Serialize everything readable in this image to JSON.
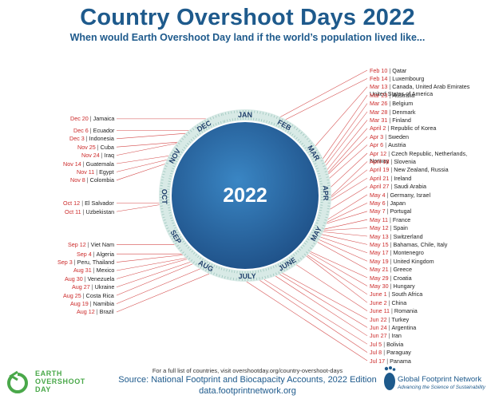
{
  "title": "Country Overshoot Days 2022",
  "subtitle": "When would Earth Overshoot Day land if the world’s population lived like...",
  "year": "2022",
  "colors": {
    "title": "#1e5a8c",
    "date": "#cc2a2a",
    "ring": "#d8eae6",
    "ring_tick": "#8dbcb2",
    "ocean": "#2b6fa8",
    "land": "#3f9a4c",
    "leader": "#cc2a2a",
    "logo_green": "#4aa84a"
  },
  "months": [
    "JAN",
    "FEB",
    "MAR",
    "APR",
    "MAY",
    "JUNE",
    "JULY",
    "AUG",
    "SEP",
    "OCT",
    "NOV",
    "DEC"
  ],
  "entries": [
    {
      "date": "Feb 10",
      "country": "Qatar"
    },
    {
      "date": "Feb 14",
      "country": "Luxembourg"
    },
    {
      "date": "Mar 13",
      "country": "Canada, United Arab Emirates United States of America"
    },
    {
      "date": "Mar 23",
      "country": "Australia"
    },
    {
      "date": "Mar 26",
      "country": "Belgium"
    },
    {
      "date": "Mar 28",
      "country": "Denmark"
    },
    {
      "date": "Mar 31",
      "country": "Finland"
    },
    {
      "date": "April 2",
      "country": "Republic of Korea"
    },
    {
      "date": "Apr 3",
      "country": "Sweden"
    },
    {
      "date": "Apr 6",
      "country": "Austria"
    },
    {
      "date": "Apr 12",
      "country": "Czech Republic, Netherlands, Norway"
    },
    {
      "date": "April 18",
      "country": "Slovenia"
    },
    {
      "date": "April 19",
      "country": "New Zealand, Russia"
    },
    {
      "date": "April 21",
      "country": "Ireland"
    },
    {
      "date": "April 27",
      "country": "Saudi Arabia"
    },
    {
      "date": "May 4",
      "country": "Germany, Israel"
    },
    {
      "date": "May 6",
      "country": "Japan"
    },
    {
      "date": "May 7",
      "country": "Portugal"
    },
    {
      "date": "May 11",
      "country": "France"
    },
    {
      "date": "May 12",
      "country": "Spain"
    },
    {
      "date": "May 13",
      "country": "Switzerland"
    },
    {
      "date": "May 15",
      "country": "Bahamas, Chile, Italy"
    },
    {
      "date": "May 17",
      "country": "Montenegro"
    },
    {
      "date": "May 19",
      "country": "United Kingdom"
    },
    {
      "date": "May 21",
      "country": "Greece"
    },
    {
      "date": "May 29",
      "country": "Croatia"
    },
    {
      "date": "May 30",
      "country": "Hungary"
    },
    {
      "date": "June 1",
      "country": "South Africa"
    },
    {
      "date": "June 2",
      "country": "China"
    },
    {
      "date": "June 11",
      "country": "Romania"
    },
    {
      "date": "Jun 22",
      "country": "Turkey"
    },
    {
      "date": "Jun 24",
      "country": "Argentina"
    },
    {
      "date": "Jun 27",
      "country": "Iran"
    },
    {
      "date": "Jul 5",
      "country": "Bolivia"
    },
    {
      "date": "Jul 8",
      "country": "Paraguay"
    },
    {
      "date": "Jul 17",
      "country": "Panama"
    },
    {
      "date": "Aug 12",
      "country": "Brazil"
    },
    {
      "date": "Aug 19",
      "country": "Namibia"
    },
    {
      "date": "Aug 25",
      "country": "Costa Rica"
    },
    {
      "date": "Aug 27",
      "country": "Ukraine"
    },
    {
      "date": "Aug 30",
      "country": "Venezuela"
    },
    {
      "date": "Aug 31",
      "country": "Mexico"
    },
    {
      "date": "Sep 3",
      "country": "Peru, Thailand"
    },
    {
      "date": "Sep 4",
      "country": "Algeria"
    },
    {
      "date": "Sep 12",
      "country": "Viet Nam"
    },
    {
      "date": "Oct 11",
      "country": "Uzbekistan"
    },
    {
      "date": "Oct 12",
      "country": "El Salvador"
    },
    {
      "date": "Nov 8",
      "country": "Colombia"
    },
    {
      "date": "Nov 11",
      "country": "Egypt"
    },
    {
      "date": "Nov 14",
      "country": "Guatemala"
    },
    {
      "date": "Nov 24",
      "country": "Iraq"
    },
    {
      "date": "Nov 25",
      "country": "Cuba"
    },
    {
      "date": "Dec 3",
      "country": "Indonesia"
    },
    {
      "date": "Dec 6",
      "country": "Ecuador"
    },
    {
      "date": "Dec 20",
      "country": "Jamaica"
    }
  ],
  "footer": {
    "full_list_note": "For a full list of countries, visit overshootday.org/country-overshoot-days",
    "source": "Source: National Footprint and Biocapacity Accounts, 2022 Edition",
    "website": "data.footprintnetwork.org",
    "logo_left_lines": [
      "EARTH",
      "OVERSHOOT",
      "DAY"
    ],
    "logo_right_name": "Global Footprint Network",
    "logo_right_tagline": "Advancing the Science of Sustainability"
  }
}
